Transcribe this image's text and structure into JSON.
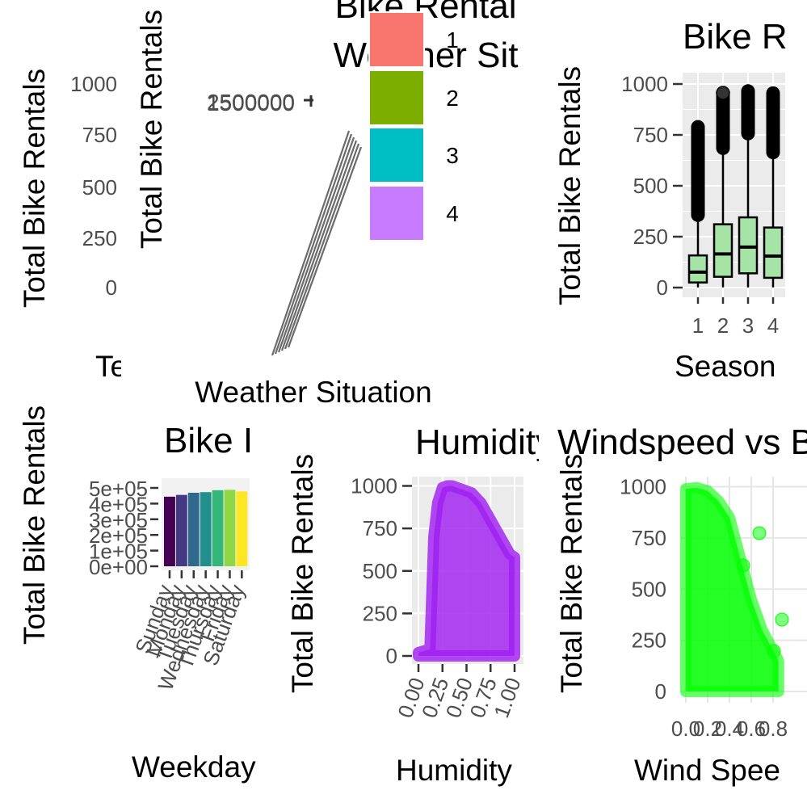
{
  "chart_data": [
    {
      "id": "p1",
      "type": "bar",
      "title": "",
      "xlabel": "Te",
      "ylabel": "Total Bike Rentals",
      "yticks": [
        "1000",
        "750",
        "500",
        "250",
        "0"
      ]
    },
    {
      "id": "p2",
      "type": "bar",
      "title": "Bike Rental\nWeather Sit",
      "xlabel": "Weather Situation",
      "ylabel": "Total Bike Rentals",
      "yticks": [
        "2500000",
        "1500000"
      ],
      "legend_position": "top-right",
      "legend": [
        {
          "label": "1",
          "color": "#F8766D"
        },
        {
          "label": "2",
          "color": "#7CAE00"
        },
        {
          "label": "3",
          "color": "#00BFC4"
        },
        {
          "label": "4",
          "color": "#C77CFF"
        }
      ]
    },
    {
      "id": "p3",
      "type": "box",
      "title": "Bike R",
      "xlabel": "Season",
      "ylabel": "Total Bike Rentals",
      "categories": [
        "1",
        "2",
        "3",
        "4"
      ],
      "ylim": [
        0,
        1000
      ],
      "yticks": [
        0,
        250,
        500,
        750,
        1000
      ],
      "fill": "#A6E3A6",
      "boxes": [
        {
          "whislo": 1,
          "q1": 25,
          "med": 76,
          "q3": 158,
          "whishi": 356,
          "outlier_max": 801
        },
        {
          "whislo": 1,
          "q1": 53,
          "med": 165,
          "q3": 311,
          "whishi": 685,
          "outlier_max": 957
        },
        {
          "whislo": 1,
          "q1": 70,
          "med": 199,
          "q3": 345,
          "whishi": 757,
          "outlier_max": 977
        },
        {
          "whislo": 1,
          "q1": 48,
          "med": 155,
          "q3": 295,
          "whishi": 664,
          "outlier_max": 967
        }
      ]
    },
    {
      "id": "p4",
      "type": "bar",
      "title": "Bike I",
      "xlabel": "Weekday",
      "ylabel": "Total Bike Rentals",
      "categories": [
        "Sunday",
        "Monday",
        "Tuesday",
        "Wednesday",
        "Thursday",
        "Friday",
        "Saturday"
      ],
      "values": [
        444027,
        455503,
        469109,
        473048,
        485395,
        487790,
        477807
      ],
      "colors": [
        "#440154",
        "#443983",
        "#31688E",
        "#21908C",
        "#35B779",
        "#8FD744",
        "#FDE725"
      ],
      "ylim": [
        0,
        500000
      ],
      "yticks": [
        "0e+00",
        "1e+05",
        "2e+05",
        "3e+05",
        "4e+05",
        "5e+05"
      ]
    },
    {
      "id": "p5",
      "type": "scatter",
      "title": "Humidity vs Bike R",
      "xlabel": "Humidity",
      "ylabel": "Total Bike Rentals",
      "xlim": [
        0,
        1
      ],
      "ylim": [
        0,
        1000
      ],
      "xticks": [
        "0.00",
        "0.25",
        "0.50",
        "0.75",
        "1.00"
      ],
      "yticks": [
        0,
        250,
        500,
        750,
        1000
      ],
      "color": "#A020F0",
      "envelope": [
        [
          0.0,
          20
        ],
        [
          0.12,
          40
        ],
        [
          0.16,
          700
        ],
        [
          0.2,
          900
        ],
        [
          0.25,
          990
        ],
        [
          0.3,
          1000
        ],
        [
          0.35,
          1000
        ],
        [
          0.45,
          980
        ],
        [
          0.55,
          960
        ],
        [
          0.65,
          900
        ],
        [
          0.75,
          800
        ],
        [
          0.85,
          700
        ],
        [
          0.95,
          600
        ],
        [
          1.0,
          580
        ]
      ]
    },
    {
      "id": "p6",
      "type": "scatter",
      "title": "Windspeed vs Bike R",
      "xlabel": "Wind Spee",
      "ylabel": "Total Bike Rentals",
      "xlim": [
        0,
        0.85
      ],
      "ylim": [
        0,
        1000
      ],
      "xticks": [
        "0.0",
        "0.2",
        "0.4",
        "0.6",
        "0.8"
      ],
      "xtick_values": [
        0.0,
        0.2,
        0.4,
        0.6,
        0.8
      ],
      "yticks": [
        0,
        250,
        500,
        750,
        1000
      ],
      "color": "#00FF00",
      "envelope": [
        [
          0.0,
          990
        ],
        [
          0.1,
          995
        ],
        [
          0.2,
          980
        ],
        [
          0.3,
          930
        ],
        [
          0.4,
          850
        ],
        [
          0.5,
          650
        ],
        [
          0.6,
          450
        ],
        [
          0.7,
          300
        ],
        [
          0.8,
          200
        ],
        [
          0.85,
          150
        ]
      ]
    }
  ]
}
